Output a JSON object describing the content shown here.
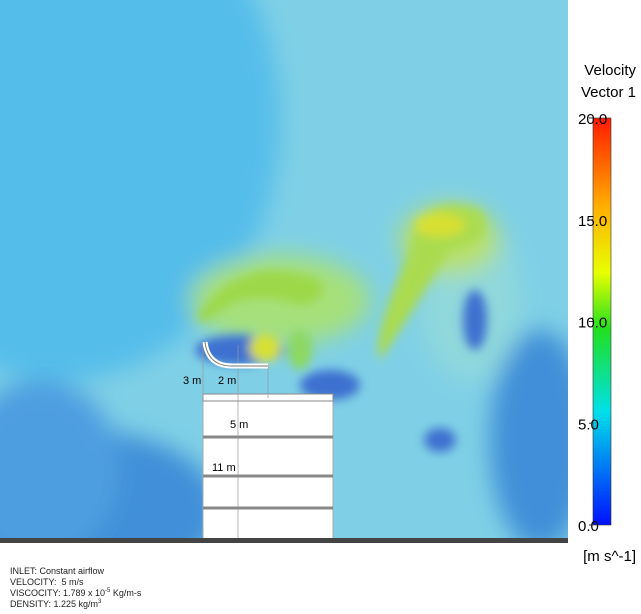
{
  "colorbar": {
    "title": [
      "Velocity",
      "Vector 1"
    ],
    "ticks": [
      {
        "value": 20,
        "label": "20.0"
      },
      {
        "value": 15,
        "label": "15.0"
      },
      {
        "value": 10,
        "label": "10.0"
      },
      {
        "value": 5,
        "label": "5.0"
      },
      {
        "value": 0,
        "label": "0.0"
      }
    ],
    "unit": "[m s^-1]"
  },
  "dimensions": [
    "3 m",
    "2 m",
    "5 m",
    "11 m"
  ],
  "notes": [
    {
      "text": "INLET: Constant airflow"
    },
    {
      "text": "VELOCITY:  5 m/s"
    },
    {
      "text": "VISCOCITY: 1.789 x 10",
      "sup": "-5",
      "tail": " Kg/m-s"
    },
    {
      "text": "DENSITY: 1.225 kg/m",
      "sup": "3"
    }
  ]
}
